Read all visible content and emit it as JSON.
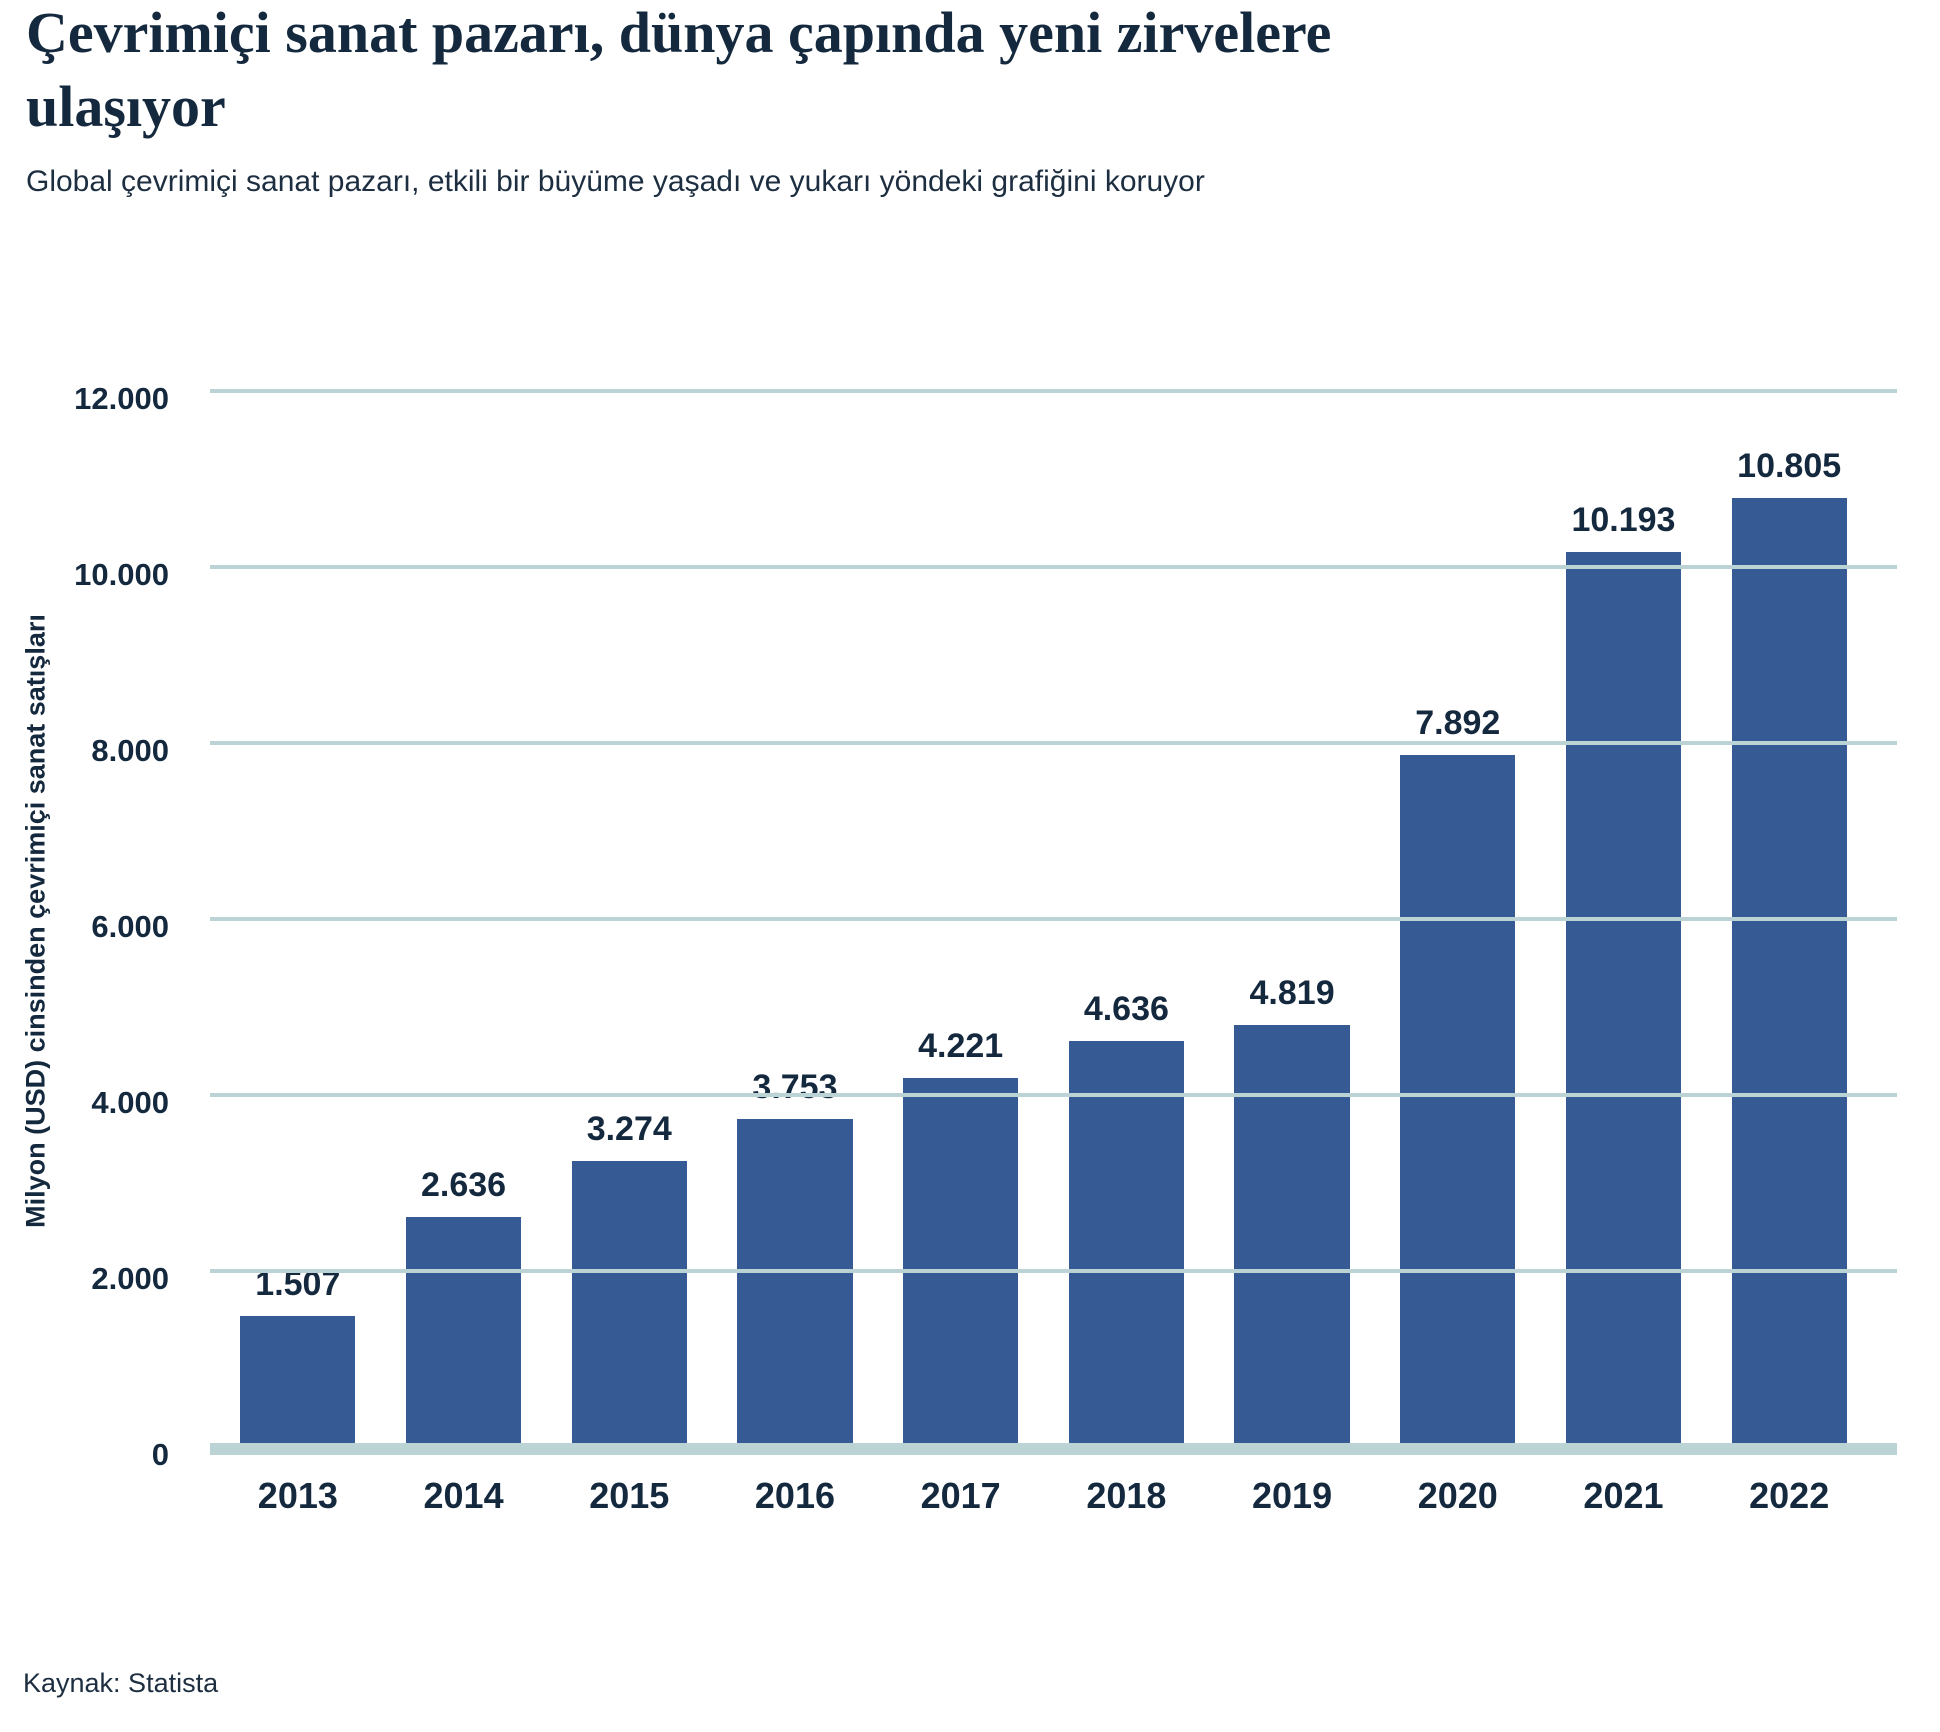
{
  "header": {
    "title": "Çevrimiçi sanat pazarı, dünya çapında yeni zirvelere ulaşıyor",
    "subtitle": "Global çevrimiçi sanat pazarı, etkili bir büyüme yaşadı ve yukarı yöndeki grafiğini koruyor"
  },
  "footer": {
    "source": "Kaynak: Statista"
  },
  "colors": {
    "bar": "#365a93",
    "grid": "#bcd3d6",
    "text": "#15293e"
  },
  "chart_data": {
    "type": "bar",
    "title": "Çevrimiçi sanat pazarı, dünya çapında yeni zirvelere ulaşıyor",
    "subtitle": "Global çevrimiçi sanat pazarı, etkili bir büyüme yaşadı ve yukarı yöndeki grafiğini koruyor",
    "categories": [
      "2013",
      "2014",
      "2015",
      "2016",
      "2017",
      "2018",
      "2019",
      "2020",
      "2021",
      "2022"
    ],
    "values": [
      1507,
      2636,
      3274,
      3753,
      4221,
      4636,
      4819,
      7892,
      10193,
      10805
    ],
    "value_labels": [
      "1.507",
      "2.636",
      "3.274",
      "3.753",
      "4.221",
      "4.636",
      "4.819",
      "7.892",
      "10.193",
      "10.805"
    ],
    "xlabel": "",
    "ylabel": "Milyon (USD) cinsinden çevrimiçi sanat satışları",
    "ylim": [
      0,
      12000
    ],
    "yticks": [
      {
        "value": 0,
        "label": "0"
      },
      {
        "value": 2000,
        "label": "2.000"
      },
      {
        "value": 4000,
        "label": "4.000"
      },
      {
        "value": 6000,
        "label": "6.000"
      },
      {
        "value": 8000,
        "label": "8.000"
      },
      {
        "value": 10000,
        "label": "10.000"
      },
      {
        "value": 12000,
        "label": "12.000"
      }
    ],
    "grid": "horizontal",
    "legend": "none",
    "source": "Kaynak: Statista"
  }
}
